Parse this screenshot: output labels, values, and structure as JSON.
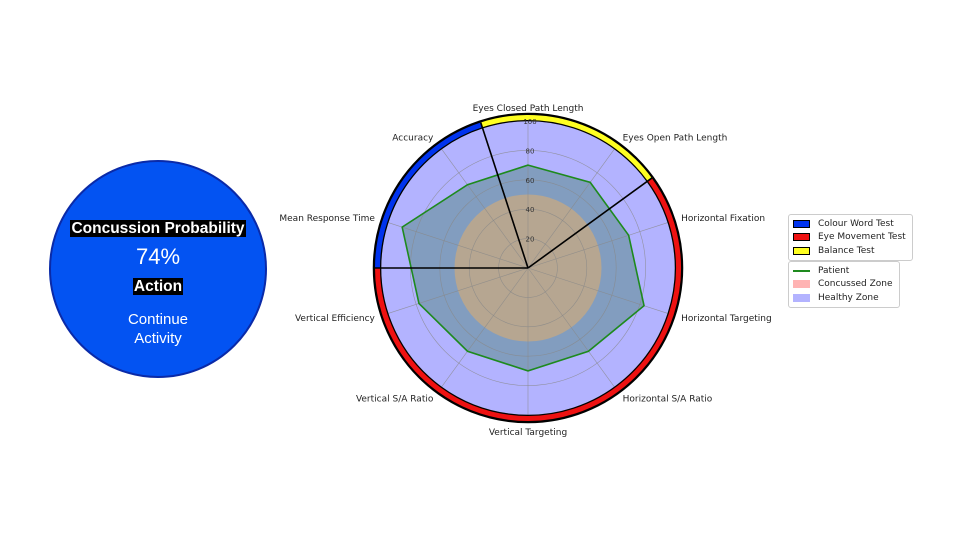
{
  "status": {
    "probability_label": "Concussion Probability",
    "probability_value": "74%",
    "action_label": "Action",
    "action_value": "Continue\nActivity",
    "circle_color": "#0353f2"
  },
  "chart_data": {
    "type": "radar",
    "axes": [
      "Eyes Closed Path Length",
      "Eyes Open Path Length",
      "Horizontal Fixation",
      "Horizontal Targeting",
      "Horizontal S/A Ratio",
      "Vertical Targeting",
      "Vertical S/A Ratio",
      "Vertical Efficiency",
      "Mean Response Time",
      "Accuracy"
    ],
    "rlim": [
      0,
      100
    ],
    "rticks": [
      20,
      40,
      60,
      80,
      100
    ],
    "grid": true,
    "series": [
      {
        "name": "Patient",
        "values": [
          70,
          72,
          72,
          83,
          70,
          70,
          70,
          78,
          90,
          70
        ],
        "color": "#1e8a1e"
      }
    ],
    "zones": [
      {
        "name": "Concussed Zone",
        "value": 50,
        "color": "#ffb3b3"
      },
      {
        "name": "Healthy Zone",
        "value": 100,
        "color": "#b3b3ff"
      }
    ],
    "test_groups": [
      {
        "name": "Colour Word Test",
        "color": "#0033ee",
        "axes": [
          "Mean Response Time",
          "Accuracy"
        ]
      },
      {
        "name": "Eye Movement Test",
        "color": "#ee1111",
        "axes": [
          "Horizontal Fixation",
          "Horizontal Targeting",
          "Horizontal S/A Ratio",
          "Vertical Targeting",
          "Vertical S/A Ratio",
          "Vertical Efficiency"
        ]
      },
      {
        "name": "Balance Test",
        "color": "#ffff22",
        "axes": [
          "Eyes Closed Path Length",
          "Eyes Open Path Length"
        ]
      }
    ],
    "legend_location": "right"
  }
}
